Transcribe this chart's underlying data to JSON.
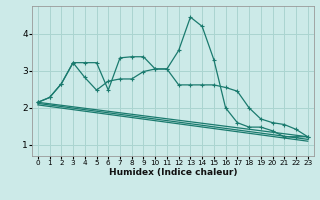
{
  "background_color": "#cceae8",
  "grid_color": "#aad4d0",
  "line_color": "#1a7a6e",
  "x_label": "Humidex (Indice chaleur)",
  "ylim": [
    0.7,
    4.75
  ],
  "xlim": [
    -0.5,
    23.5
  ],
  "yticks": [
    1,
    2,
    3,
    4
  ],
  "xticks": [
    0,
    1,
    2,
    3,
    4,
    5,
    6,
    7,
    8,
    9,
    10,
    11,
    12,
    13,
    14,
    15,
    16,
    17,
    18,
    19,
    20,
    21,
    22,
    23
  ],
  "line1_x": [
    0,
    1,
    2,
    3,
    4,
    5,
    6,
    7,
    8,
    9,
    10,
    11,
    12,
    13,
    14,
    15,
    16,
    17,
    18,
    19,
    20,
    21,
    22,
    23
  ],
  "line1_y": [
    2.15,
    2.28,
    2.65,
    3.22,
    3.22,
    3.22,
    2.48,
    3.35,
    3.38,
    3.38,
    3.05,
    3.05,
    3.55,
    4.45,
    4.2,
    3.3,
    2.0,
    1.6,
    1.48,
    1.48,
    1.38,
    1.22,
    1.22,
    1.22
  ],
  "line2_x": [
    0,
    1,
    2,
    3,
    4,
    5,
    6,
    7,
    8,
    9,
    10,
    11,
    12,
    13,
    14,
    15,
    16,
    17,
    18,
    19,
    20,
    21,
    22,
    23
  ],
  "line2_y": [
    2.15,
    2.28,
    2.65,
    3.22,
    2.82,
    2.48,
    2.72,
    2.78,
    2.78,
    2.98,
    3.05,
    3.05,
    2.62,
    2.62,
    2.62,
    2.62,
    2.55,
    2.45,
    2.0,
    1.7,
    1.6,
    1.55,
    1.42,
    1.22
  ],
  "line3_x": [
    0,
    23
  ],
  "line3_y": [
    2.15,
    1.22
  ],
  "line4_x": [
    0,
    23
  ],
  "line4_y": [
    2.12,
    1.15
  ],
  "line5_x": [
    0,
    23
  ],
  "line5_y": [
    2.08,
    1.1
  ]
}
